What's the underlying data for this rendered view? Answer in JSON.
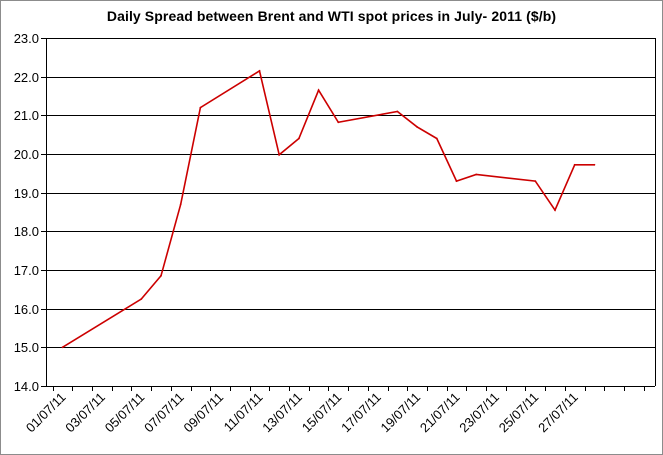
{
  "chart_data": {
    "type": "line",
    "title": "Daily  Spread between Brent and WTI spot prices in July- 2011 ($/b)",
    "xlabel": "",
    "ylabel": "",
    "ylim": [
      14.0,
      23.0
    ],
    "y_ticks": [
      "14.0",
      "15.0",
      "16.0",
      "17.0",
      "18.0",
      "19.0",
      "20.0",
      "21.0",
      "22.0",
      "23.0"
    ],
    "x_tick_labels": [
      "01/07/11",
      "03/07/11",
      "05/07/11",
      "07/07/11",
      "09/07/11",
      "11/07/11",
      "13/07/11",
      "15/07/11",
      "17/07/11",
      "19/07/11",
      "21/07/11",
      "23/07/11",
      "25/07/11",
      "27/07/11"
    ],
    "grid": "horizontal",
    "legend": "none",
    "series": [
      {
        "color": "#cc0000",
        "points": [
          {
            "x": "01/07/11",
            "y": 15.0
          },
          {
            "x": "05/07/11",
            "y": 16.25
          },
          {
            "x": "06/07/11",
            "y": 16.85
          },
          {
            "x": "07/07/11",
            "y": 18.7
          },
          {
            "x": "08/07/11",
            "y": 21.2
          },
          {
            "x": "11/07/11",
            "y": 22.15
          },
          {
            "x": "12/07/11",
            "y": 19.98
          },
          {
            "x": "13/07/11",
            "y": 20.4
          },
          {
            "x": "14/07/11",
            "y": 21.65
          },
          {
            "x": "15/07/11",
            "y": 20.82
          },
          {
            "x": "18/07/11",
            "y": 21.1
          },
          {
            "x": "19/07/11",
            "y": 20.7
          },
          {
            "x": "20/07/11",
            "y": 20.4
          },
          {
            "x": "21/07/11",
            "y": 19.3
          },
          {
            "x": "22/07/11",
            "y": 19.47
          },
          {
            "x": "25/07/11",
            "y": 19.3
          },
          {
            "x": "26/07/11",
            "y": 18.55
          },
          {
            "x": "27/07/11",
            "y": 19.72
          },
          {
            "x": "28/07/11",
            "y": 19.72
          }
        ]
      }
    ]
  }
}
